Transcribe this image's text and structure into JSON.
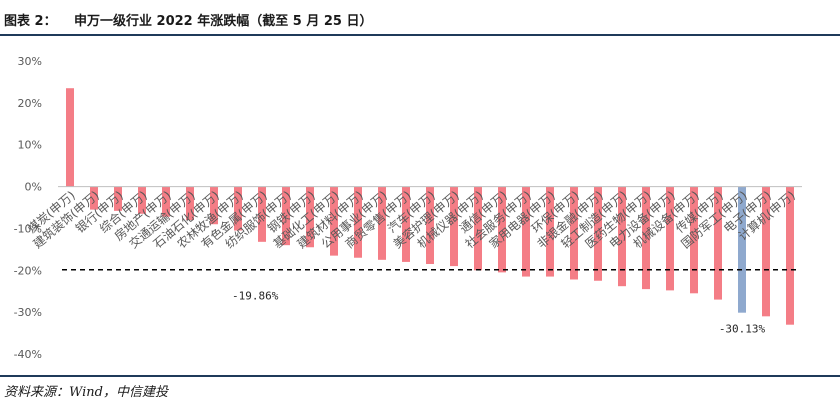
{
  "header": {
    "label": "图表 2：",
    "title": "申万一级行业 2022 年涨跌幅（截至 5 月 25 日）"
  },
  "source": "资料来源：Wind，中信建投",
  "colors": {
    "bar": "#f47d86",
    "highlight_bar": "#8fa9ce",
    "axis": "#bfbfbf",
    "text": "#595959",
    "rule": "#1f3a5a"
  },
  "chart_data": {
    "type": "bar",
    "categories": [
      "煤炭(申万)",
      "建筑装饰(申万)",
      "银行(申万)",
      "综合(申万)",
      "房地产(申万)",
      "交通运输(申万)",
      "石油石化(申万)",
      "农林牧渔(申万)",
      "有色金属(申万)",
      "纺织服饰(申万)",
      "钢铁(申万)",
      "基础化工(申万)",
      "建筑材料(申万)",
      "公用事业(申万)",
      "商贸零售(申万)",
      "汽车(申万)",
      "美容护理(申万)",
      "机械仪器(申万)",
      "通信(申万)",
      "社会服务(申万)",
      "家用电器(申万)",
      "环保(申万)",
      "非银金融(申万)",
      "轻工制造(申万)",
      "医药生物(申万)",
      "电力设备(申万)",
      "机械设备(申万)",
      "传媒(申万)",
      "国防军工(申万)",
      "电子(申万)",
      "计算机(申万)"
    ],
    "values": [
      23.5,
      -5.5,
      -5.8,
      -6.5,
      -7.2,
      -8.0,
      -9.0,
      -10.5,
      -13.2,
      -14.0,
      -14.5,
      -16.5,
      -17.0,
      -17.5,
      -18.0,
      -18.5,
      -19.0,
      -20.0,
      -20.5,
      -21.5,
      -21.5,
      -22.2,
      -22.5,
      -23.8,
      -24.5,
      -24.8,
      -25.5,
      -27.0,
      -30.13,
      -31.0,
      -33.0
    ],
    "highlight_index": 28,
    "reference_line": {
      "value": -19.86,
      "label": "-19.86%"
    },
    "annotation": {
      "label": "-30.13%",
      "index": 28
    },
    "y_ticks": [
      "30%",
      "20%",
      "10%",
      "0%",
      "-10%",
      "-20%",
      "-30%",
      "-40%"
    ],
    "y_tick_values": [
      30,
      20,
      10,
      0,
      -10,
      -20,
      -30,
      -40
    ],
    "ylim": [
      -40,
      30
    ],
    "title": "申万一级行业 2022 年涨跌幅（截至 5 月 25 日）",
    "xlabel": "",
    "ylabel": "",
    "grid": false,
    "legend": "none"
  }
}
